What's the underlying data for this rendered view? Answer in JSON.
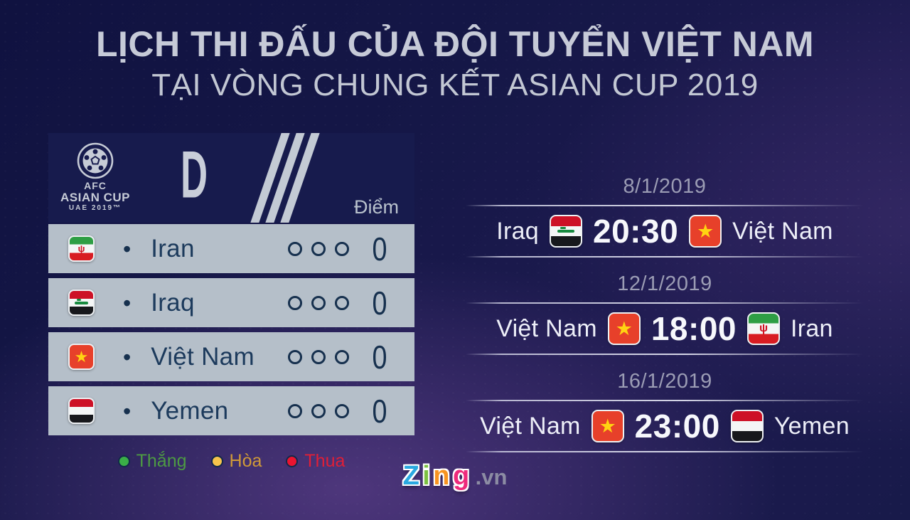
{
  "title": {
    "line1": "LỊCH THI ĐẤU CỦA ĐỘI TUYỂN VIỆT NAM",
    "line2": "TẠI VÒNG CHUNG KẾT ASIAN CUP 2019"
  },
  "standings": {
    "logo": {
      "line1": "AFC",
      "line2": "ASIAN CUP",
      "line3": "UAE 2019™"
    },
    "group_letter": "D",
    "points_header": "Điểm",
    "bullet": "•",
    "rows": [
      {
        "team": "Iran",
        "flag": "iran",
        "points": "0",
        "results": [
          "empty",
          "empty",
          "empty"
        ]
      },
      {
        "team": "Iraq",
        "flag": "iraq",
        "points": "0",
        "results": [
          "empty",
          "empty",
          "empty"
        ]
      },
      {
        "team": "Việt Nam",
        "flag": "vietnam",
        "points": "0",
        "results": [
          "empty",
          "empty",
          "empty"
        ]
      },
      {
        "team": "Yemen",
        "flag": "yemen",
        "points": "0",
        "results": [
          "empty",
          "empty",
          "empty"
        ]
      }
    ],
    "legend": [
      {
        "label": "Thắng",
        "color": "#3aae47",
        "text_color": "#4d9a43"
      },
      {
        "label": "Hòa",
        "color": "#f6c44c",
        "text_color": "#d09a38"
      },
      {
        "label": "Thua",
        "color": "#ea1430",
        "text_color": "#e01f37"
      }
    ]
  },
  "fixtures": [
    {
      "date": "8/1/2019",
      "home": "Iraq",
      "home_flag": "iraq",
      "time": "20:30",
      "away": "Việt Nam",
      "away_flag": "vietnam"
    },
    {
      "date": "12/1/2019",
      "home": "Việt Nam",
      "home_flag": "vietnam",
      "time": "18:00",
      "away": "Iran",
      "away_flag": "iran"
    },
    {
      "date": "16/1/2019",
      "home": "Việt Nam",
      "home_flag": "vietnam",
      "time": "23:00",
      "away": "Yemen",
      "away_flag": "yemen"
    }
  ],
  "flags": {
    "vietnam": {
      "emblem_glyph": "★"
    },
    "iran": {
      "emblem_glyph": "ψ"
    },
    "iraq": {
      "emblem_glyph": ""
    },
    "yemen": {
      "emblem_glyph": ""
    }
  },
  "footer": {
    "logo_letters": [
      {
        "char": "Z",
        "color": "#2aa9e0"
      },
      {
        "char": "i",
        "color": "#7cc142"
      },
      {
        "char": "n",
        "color": "#f79420"
      },
      {
        "char": "g",
        "color": "#ee2a7b"
      }
    ],
    "logo_suffix": ".vn"
  },
  "colors": {
    "background_navy": "#151747",
    "background_purple": "#4a3370",
    "table_header": "#171b4d",
    "table_row": "#b5bfc9",
    "table_text": "#1c3a5c",
    "fixture_text": "#edeff8",
    "date_text": "#9b9cb4",
    "title_text": "#c6cad7"
  }
}
